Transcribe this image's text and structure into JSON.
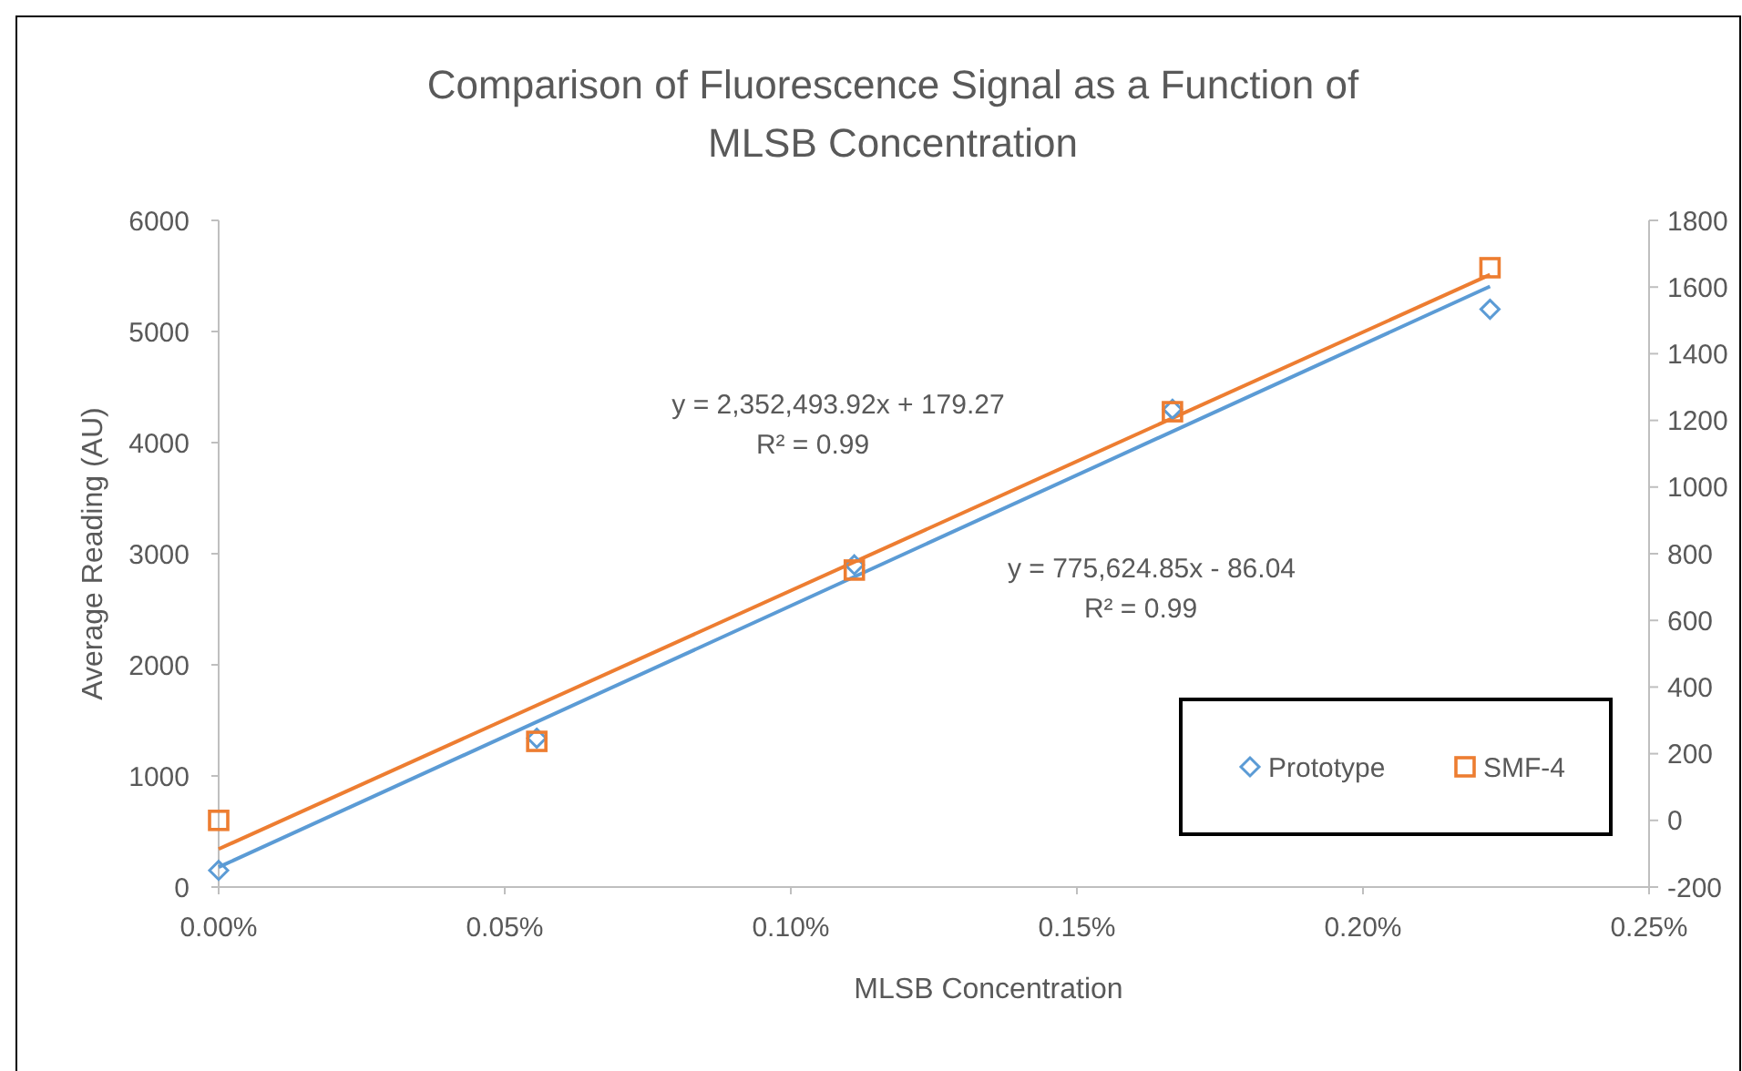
{
  "chart_data": {
    "type": "scatter",
    "title": "Comparison of Fluorescence Signal as a Function of MLSB Concentration",
    "xlabel": "MLSB Concentration",
    "ylabel": "Average Reading (AU)",
    "xlim": [
      0,
      0.25
    ],
    "xticks": [
      {
        "value": 0,
        "label": "0.00%"
      },
      {
        "value": 0.05,
        "label": "0.05%"
      },
      {
        "value": 0.1,
        "label": "0.10%"
      },
      {
        "value": 0.15,
        "label": "0.15%"
      },
      {
        "value": 0.2,
        "label": "0.20%"
      },
      {
        "value": 0.25,
        "label": "0.25%"
      }
    ],
    "ylim": [
      0,
      6000
    ],
    "yticks": [
      0,
      1000,
      2000,
      3000,
      4000,
      5000,
      6000
    ],
    "y2lim": [
      -200,
      1800
    ],
    "y2ticks": [
      -200,
      0,
      200,
      400,
      600,
      800,
      1000,
      1200,
      1400,
      1600,
      1800
    ],
    "series": [
      {
        "name": "Prototype",
        "marker": "diamond",
        "color": "#5b9bd5",
        "x": [
          0,
          0.0556,
          0.1111,
          0.1667,
          0.2222
        ],
        "values": [
          150,
          1340,
          2900,
          4300,
          5200
        ]
      },
      {
        "name": "SMF-4",
        "marker": "square",
        "axis": "y2",
        "color": "#ed7d31",
        "x": [
          0,
          0.0556,
          0.1111,
          0.1667,
          0.2222
        ],
        "values": [
          0,
          237,
          751,
          1226,
          1658
        ]
      },
      {
        "type": "line",
        "color": "#5b9bd5",
        "x": [
          0,
          0.2222
        ],
        "values": [
          179,
          5406
        ]
      },
      {
        "type": "line",
        "axis": "y2",
        "color": "#ed7d31",
        "x": [
          0,
          0.2222
        ],
        "values": [
          -86,
          1637
        ]
      }
    ],
    "annotations": [
      "y = 2,352,493.92x + 179.27",
      "R² = 0.99",
      "y = 775,624.85x - 86.04",
      "R² = 0.99"
    ],
    "legend": "bottom right",
    "grid": false
  }
}
